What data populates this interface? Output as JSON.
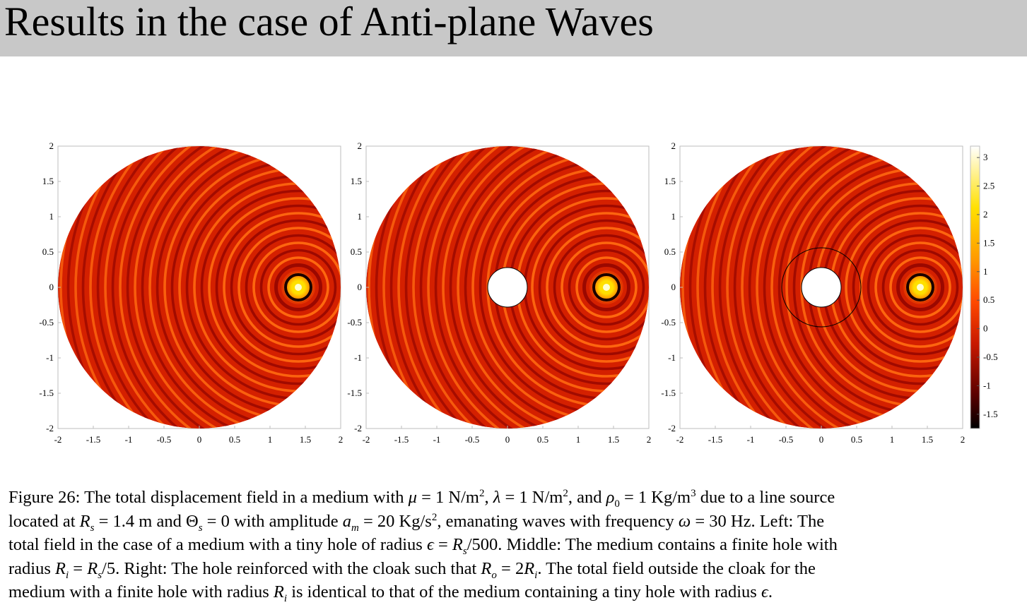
{
  "slide": {
    "title": "Results in the case of Anti-plane Waves"
  },
  "figure": {
    "axis_ticks": [
      "-2",
      "-1.5",
      "-1",
      "-0.5",
      "0",
      "0.5",
      "1",
      "1.5",
      "2"
    ],
    "y_ticks": [
      "2",
      "1.5",
      "1",
      "0.5",
      "0",
      "-0.5",
      "-1",
      "-1.5",
      "-2"
    ],
    "colorbar_ticks": [
      "3",
      "2.5",
      "2",
      "1.5",
      "1",
      "0.5",
      "0",
      "-0.5",
      "-1",
      "-1.5"
    ],
    "colorbar_range": [
      -1.75,
      3.2
    ],
    "panels": [
      {
        "label": "Left",
        "hole": false,
        "cloak": false
      },
      {
        "label": "Middle",
        "hole": true,
        "cloak": false
      },
      {
        "label": "Right",
        "hole": true,
        "cloak": true
      }
    ],
    "colors": {
      "dark": "#1a0000",
      "red": "#d42000",
      "orange": "#ff6a00",
      "yellow": "#ffe000",
      "white": "#ffffe0"
    }
  },
  "caption": {
    "lines": [
      [
        {
          "t": "Figure 26: The total displacement field in a medium with "
        },
        {
          "t": "μ",
          "i": true
        },
        {
          "t": " = 1 N/m"
        },
        {
          "t": "2",
          "sup": true
        },
        {
          "t": ", "
        },
        {
          "t": "λ",
          "i": true
        },
        {
          "t": " = 1 N/m"
        },
        {
          "t": "2",
          "sup": true
        },
        {
          "t": ", and "
        },
        {
          "t": "ρ",
          "i": true
        },
        {
          "t": "0",
          "sub": true
        },
        {
          "t": " = 1 Kg/m"
        },
        {
          "t": "3",
          "sup": true
        },
        {
          "t": " due to a line source"
        }
      ],
      [
        {
          "t": "located at "
        },
        {
          "t": "R",
          "i": true
        },
        {
          "t": "s",
          "sub": true,
          "i": true
        },
        {
          "t": " = 1.4 m and Θ"
        },
        {
          "t": "s",
          "sub": true,
          "i": true
        },
        {
          "t": " = 0 with amplitude "
        },
        {
          "t": "a",
          "i": true
        },
        {
          "t": "m",
          "sub": true,
          "i": true
        },
        {
          "t": " = 20 Kg/s"
        },
        {
          "t": "2",
          "sup": true
        },
        {
          "t": ", emanating waves with frequency "
        },
        {
          "t": "ω",
          "i": true
        },
        {
          "t": " = 30 Hz. Left: The"
        }
      ],
      [
        {
          "t": "total field in the case of a medium with a tiny hole of radius "
        },
        {
          "t": "ϵ",
          "i": true
        },
        {
          "t": " = "
        },
        {
          "t": "R",
          "i": true
        },
        {
          "t": "s",
          "sub": true,
          "i": true
        },
        {
          "t": "/500. Middle: The medium contains a finite hole with"
        }
      ],
      [
        {
          "t": "radius "
        },
        {
          "t": "R",
          "i": true
        },
        {
          "t": "i",
          "sub": true,
          "i": true
        },
        {
          "t": " = "
        },
        {
          "t": "R",
          "i": true
        },
        {
          "t": "s",
          "sub": true,
          "i": true
        },
        {
          "t": "/5. Right: The hole reinforced with the cloak such that "
        },
        {
          "t": "R",
          "i": true
        },
        {
          "t": "o",
          "sub": true,
          "i": true
        },
        {
          "t": " = 2"
        },
        {
          "t": "R",
          "i": true
        },
        {
          "t": "i",
          "sub": true,
          "i": true
        },
        {
          "t": ". The total field outside the cloak for the"
        }
      ],
      [
        {
          "t": "medium with a finite hole with radius "
        },
        {
          "t": "R",
          "i": true
        },
        {
          "t": "i",
          "sub": true,
          "i": true
        },
        {
          "t": " is identical to that of the medium containing a tiny hole with radius "
        },
        {
          "t": "ϵ",
          "i": true
        },
        {
          "t": "."
        }
      ]
    ]
  }
}
